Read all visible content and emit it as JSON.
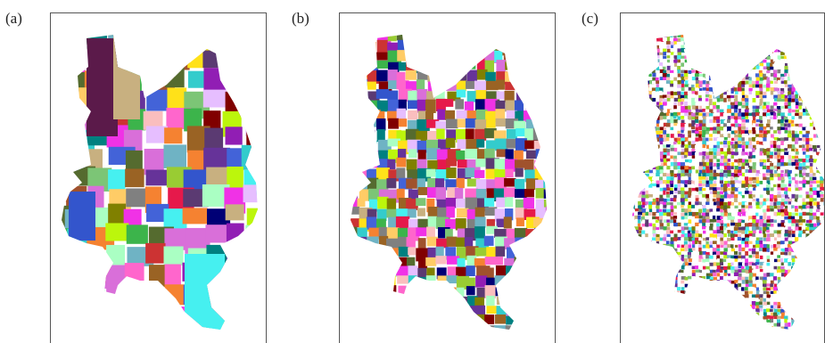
{
  "figure": {
    "panels": [
      {
        "label": "(a)",
        "granularity": "coarse"
      },
      {
        "label": "(b)",
        "granularity": "medium"
      },
      {
        "label": "(c)",
        "granularity": "fine"
      }
    ]
  },
  "palette": [
    "#e6194b",
    "#3cb44b",
    "#ffe119",
    "#4363d8",
    "#f58231",
    "#911eb4",
    "#46f0f0",
    "#f032e6",
    "#bcf60c",
    "#fabebe",
    "#008080",
    "#e6beff",
    "#9a6324",
    "#800000",
    "#aaffc3",
    "#808000",
    "#000075",
    "#808080",
    "#c8b080",
    "#7cc576",
    "#5b3a72",
    "#d96fd9",
    "#6fb3c4",
    "#a0522d",
    "#3355cc",
    "#ff66cc",
    "#99cc33",
    "#ffcc66",
    "#663399",
    "#cc3333",
    "#33cccc",
    "#556b2f"
  ]
}
